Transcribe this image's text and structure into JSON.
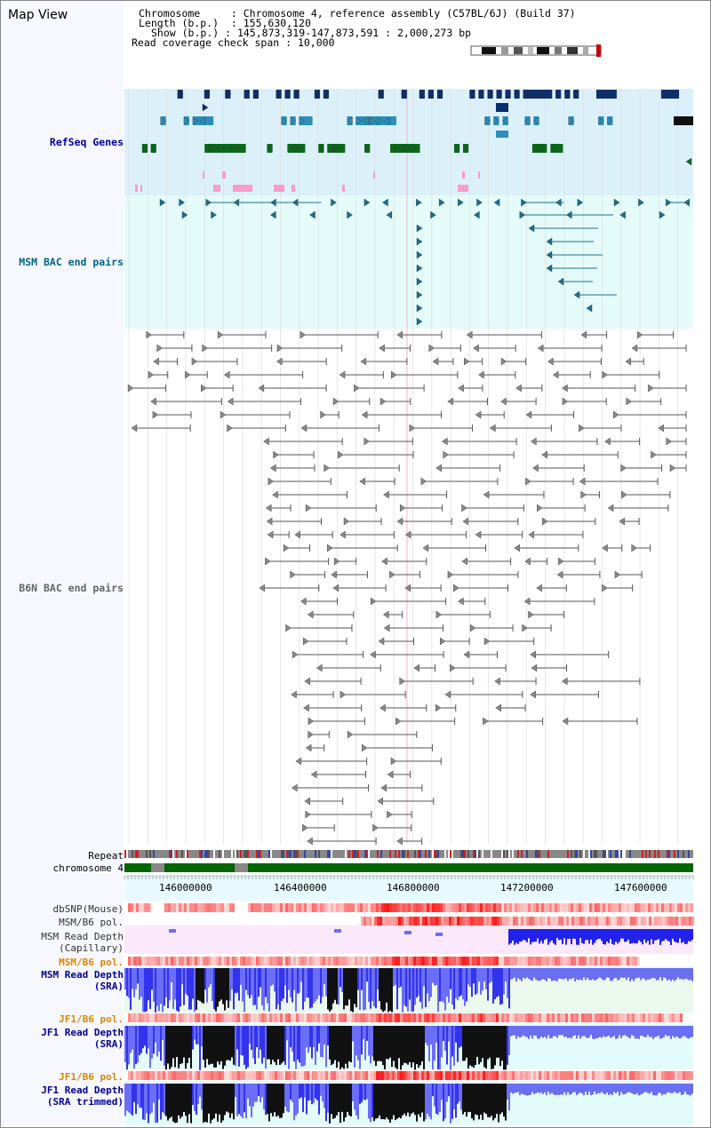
{
  "title": "Map View",
  "info": {
    "chromosome_key": "Chromosome",
    "chromosome_val": "Chromosome 4, reference assembly (C57BL/6J) (Build 37)",
    "length_key": "Length (b.p.)",
    "length_val": "155,630,120",
    "show_key": "Show (b.p.)",
    "show_val": "145,873,319-147,873,591 : 2,000,273 bp",
    "span_key": "Read coverage check span",
    "span_val": "10,000"
  },
  "tracks": {
    "refseq": "RefSeq Genes",
    "msm_bac": "MSM BAC end pairs",
    "b6n_bac": "B6N BAC end pairs",
    "repeat": "Repeat",
    "chromosome": "chromosome 4",
    "dbsnp": "dbSNP(Mouse)",
    "msm_b6_pol_1": "MSM/B6 pol.",
    "msm_read_depth_cap_1": "MSM Read Depth",
    "msm_read_depth_cap_2": "(Capillary)",
    "msm_b6_pol_2": "MSM/B6 pol.",
    "msm_read_depth_sra_1": "MSM Read Depth",
    "msm_read_depth_sra_2": "(SRA)",
    "jf1_b6_pol_1": "JF1/B6 pol.",
    "jf1_read_depth_sra_1": "JF1 Read Depth",
    "jf1_read_depth_sra_2": "(SRA)",
    "jf1_b6_pol_2": "JF1/B6 pol.",
    "jf1_read_depth_trim_1": "JF1 Read Depth",
    "jf1_read_depth_trim_2": "(SRA trimmed)"
  },
  "axis": {
    "ticks": [
      "146000000",
      "146400000",
      "146800000",
      "147200000",
      "147600000"
    ]
  },
  "colors": {
    "refseq_bg": "#dcf0fa",
    "msm_bac_bg": "#e4fbf9",
    "b6n_bg": "#ffffff",
    "gene_dark": "#0a2f6e",
    "gene_mid": "#2b8fb8",
    "gene_green": "#0a6a1a",
    "pink": "#ff99cc",
    "msm_bac": "#1a6f8f",
    "b6n": "#555555",
    "chromosome_bar": "#006600",
    "depth_blue": "#2222ee",
    "depth_black": "#111111",
    "snp_red": "#ee2222",
    "label_navy": "#000099",
    "label_teal": "#006688",
    "label_orange": "#dd8800"
  }
}
